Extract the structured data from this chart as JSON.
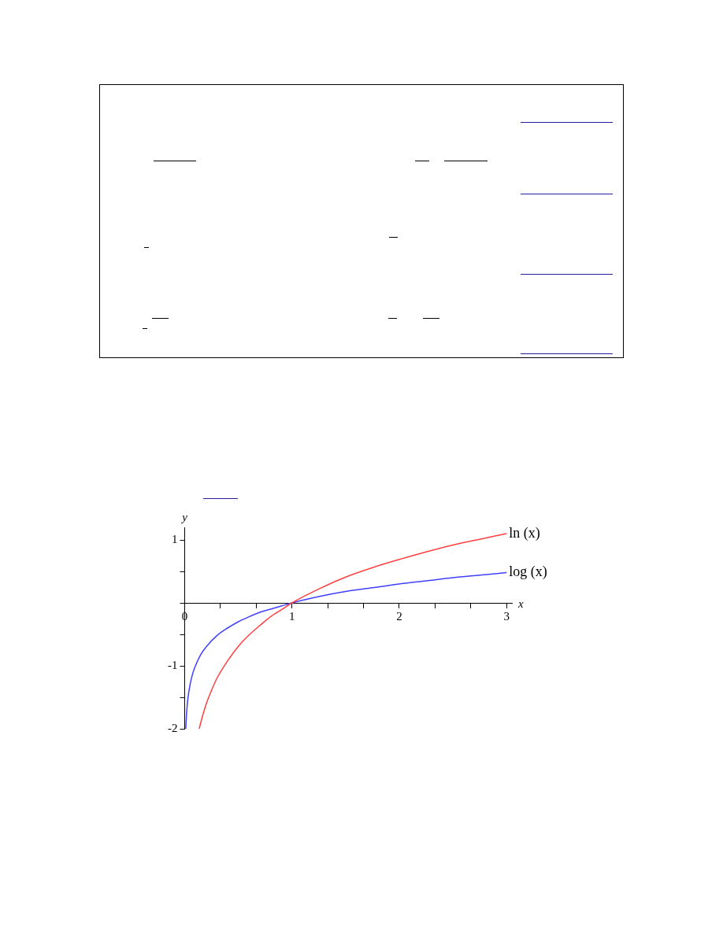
{
  "chart_data": {
    "type": "line",
    "xlabel": "x",
    "ylabel": "y",
    "xlim": [
      0,
      3.05
    ],
    "ylim": [
      -2,
      1.2
    ],
    "xticks": [
      {
        "value": 0,
        "label": "0"
      },
      {
        "value": 0.333,
        "label": null
      },
      {
        "value": 0.667,
        "label": null
      },
      1,
      {
        "value": 1.333,
        "label": null
      },
      {
        "value": 1.667,
        "label": null
      },
      2,
      {
        "value": 2.333,
        "label": null
      },
      {
        "value": 2.667,
        "label": null
      },
      3
    ],
    "yticks": [
      -2,
      {
        "value": -1.5,
        "label": null
      },
      -1,
      {
        "value": -0.5,
        "label": null
      },
      {
        "value": 0,
        "label": null
      },
      {
        "value": 0.5,
        "label": null
      },
      1
    ],
    "grid": false,
    "legend": false,
    "marker": "none",
    "line_style": "solid",
    "series": [
      {
        "name": "ln (x)",
        "color": "#ff4040",
        "x": [
          0.135,
          0.15,
          0.2,
          0.25,
          0.3,
          0.4,
          0.5,
          0.6,
          0.7,
          0.8,
          0.9,
          1,
          1.25,
          1.5,
          1.75,
          2,
          2.25,
          2.5,
          2.75,
          3
        ],
        "values": [
          -2,
          -1.9,
          -1.61,
          -1.39,
          -1.2,
          -0.92,
          -0.69,
          -0.51,
          -0.36,
          -0.22,
          -0.11,
          0,
          0.22,
          0.41,
          0.56,
          0.69,
          0.81,
          0.92,
          1.01,
          1.1
        ]
      },
      {
        "name": "log (x)",
        "color": "#4040ff",
        "x": [
          0.01,
          0.02,
          0.03,
          0.05,
          0.075,
          0.1,
          0.15,
          0.2,
          0.3,
          0.4,
          0.5,
          0.6,
          0.7,
          0.8,
          0.9,
          1,
          1.25,
          1.5,
          1.75,
          2,
          2.25,
          2.5,
          2.75,
          3
        ],
        "values": [
          -2,
          -1.7,
          -1.52,
          -1.3,
          -1.12,
          -1,
          -0.82,
          -0.7,
          -0.52,
          -0.4,
          -0.3,
          -0.22,
          -0.15,
          -0.1,
          -0.05,
          0,
          0.1,
          0.18,
          0.24,
          0.3,
          0.35,
          0.4,
          0.44,
          0.48
        ]
      }
    ]
  }
}
